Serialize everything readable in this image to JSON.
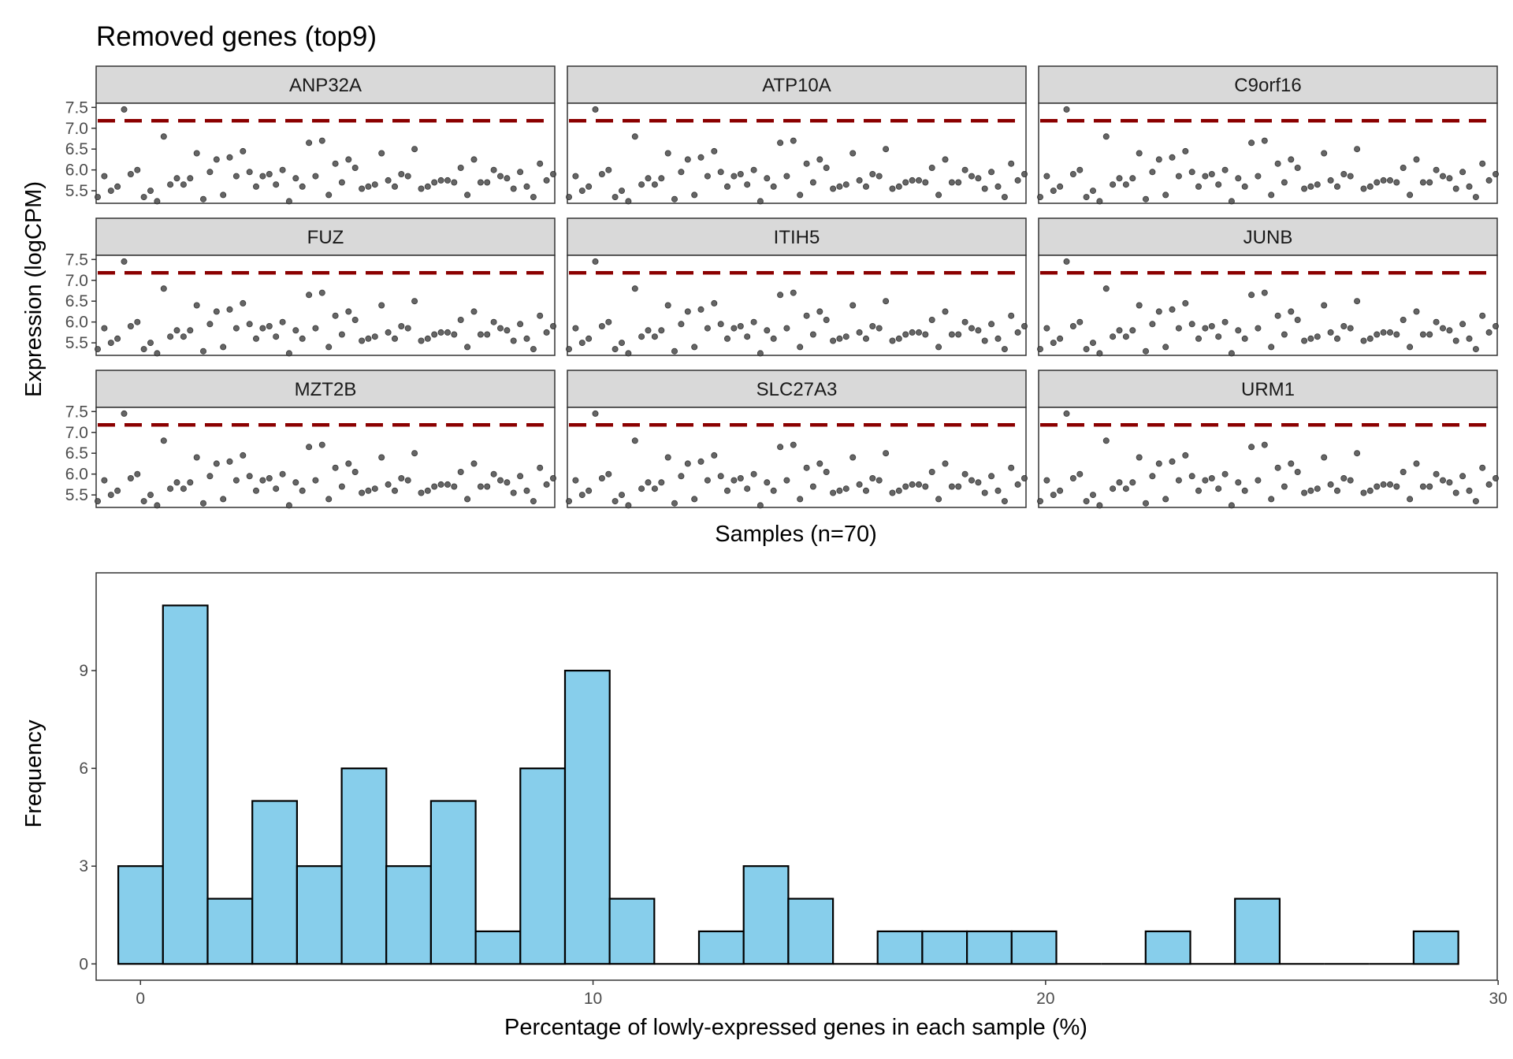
{
  "chart_data": [
    {
      "type": "scatter",
      "title": "Removed genes (top9)",
      "xlabel": "Samples (n=70)",
      "ylabel": "Expression (logCPM)",
      "ylim": [
        5.2,
        7.6
      ],
      "yticks": [
        5.5,
        6.0,
        6.5,
        7.0,
        7.5
      ],
      "ytick_labels": [
        "5.5",
        "6.0",
        "6.5",
        "7.0",
        "7.5"
      ],
      "reference_line": {
        "y": 7.18,
        "style": "dashed",
        "color": "#8b0000"
      },
      "panels": [
        "ANP32A",
        "ATP10A",
        "C9orf16",
        "FUZ",
        "ITIH5",
        "JUNB",
        "MZT2B",
        "SLC27A3",
        "URM1"
      ],
      "n_samples": 70,
      "values": [
        5.35,
        5.85,
        5.5,
        5.6,
        7.45,
        5.9,
        6.0,
        5.35,
        5.5,
        5.25,
        6.8,
        5.65,
        5.8,
        5.65,
        5.8,
        6.4,
        5.3,
        5.95,
        6.25,
        5.4,
        6.3,
        5.85,
        6.45,
        5.95,
        5.6,
        5.85,
        5.9,
        5.65,
        6.0,
        5.25,
        5.8,
        5.6,
        6.65,
        5.85,
        6.7,
        5.4,
        6.15,
        5.7,
        6.25,
        6.05,
        5.55,
        5.6,
        5.65,
        6.4,
        5.75,
        5.6,
        5.9,
        5.85,
        6.5,
        5.55,
        5.6,
        5.7,
        5.75,
        5.75,
        5.7,
        6.05,
        5.4,
        6.25,
        5.7,
        5.7,
        6.0,
        5.85,
        5.8,
        5.55,
        5.95,
        5.6,
        5.35,
        6.15,
        5.75,
        5.9
      ],
      "point_color": "#555555",
      "strip_color": "#d9d9d9"
    },
    {
      "type": "bar",
      "xlabel": "Percentage of lowly-expressed genes in each sample (%)",
      "ylabel": "Frequency",
      "xlim": [
        -0.98,
        29.98
      ],
      "ylim": [
        -0.5,
        12.0
      ],
      "xticks": [
        0,
        10,
        20,
        30
      ],
      "xtick_labels": [
        "0",
        "10",
        "20",
        "30"
      ],
      "yticks": [
        0,
        3,
        6,
        9
      ],
      "ytick_labels": [
        "0",
        "3",
        "6",
        "9"
      ],
      "bin_width": 0.987,
      "bin_start": -0.49,
      "values": [
        3,
        11,
        2,
        5,
        3,
        6,
        3,
        5,
        1,
        6,
        9,
        2,
        0,
        1,
        3,
        2,
        0,
        1,
        1,
        1,
        1,
        0,
        0,
        1,
        0,
        2,
        0,
        0,
        0,
        1
      ],
      "fill": "#87ceeb",
      "stroke": "#000000"
    }
  ]
}
